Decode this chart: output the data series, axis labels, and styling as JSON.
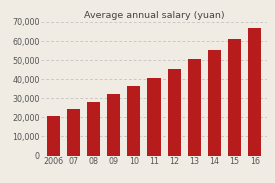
{
  "title": "Average annual salary (yuan)",
  "categories": [
    "2006",
    "07",
    "08",
    "09",
    "10",
    "11",
    "12",
    "13",
    "14",
    "15",
    "16"
  ],
  "values": [
    20500,
    24500,
    28000,
    32000,
    36500,
    40500,
    45500,
    50500,
    55500,
    61000,
    67000
  ],
  "bar_color": "#b71c1c",
  "ylim": [
    0,
    70000
  ],
  "yticks": [
    0,
    10000,
    20000,
    30000,
    40000,
    50000,
    60000,
    70000
  ],
  "ytick_labels": [
    "0",
    "10,000",
    "20,000",
    "30,000",
    "40,000",
    "50,000",
    "60,000",
    "70,000"
  ],
  "background_color": "#f0ebe3",
  "title_fontsize": 6.8,
  "tick_fontsize": 5.8,
  "grid_color": "#bbbbbb",
  "bar_width": 0.65
}
